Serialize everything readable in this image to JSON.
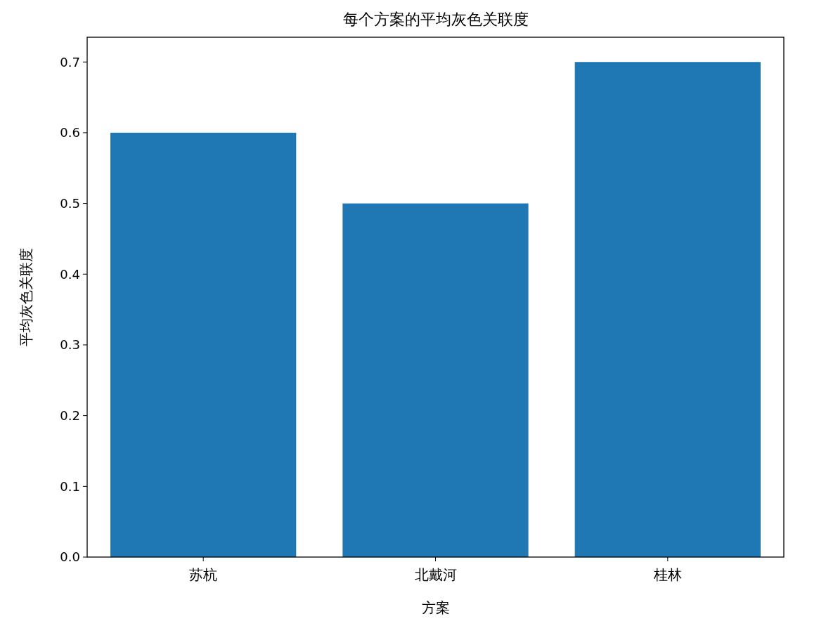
{
  "chart_data": {
    "type": "bar",
    "title": "每个方案的平均灰色关联度",
    "xlabel": "方案",
    "ylabel": "平均灰色关联度",
    "categories": [
      "苏杭",
      "北戴河",
      "桂林"
    ],
    "values": [
      0.6,
      0.5,
      0.7
    ],
    "color": "#1f77b4",
    "ylim": [
      0,
      0.735
    ],
    "yticks": [
      {
        "value": 0,
        "label": "0.0"
      },
      0.1,
      0.2,
      0.3,
      0.4,
      0.5,
      0.6,
      0.7
    ],
    "grid": false
  }
}
